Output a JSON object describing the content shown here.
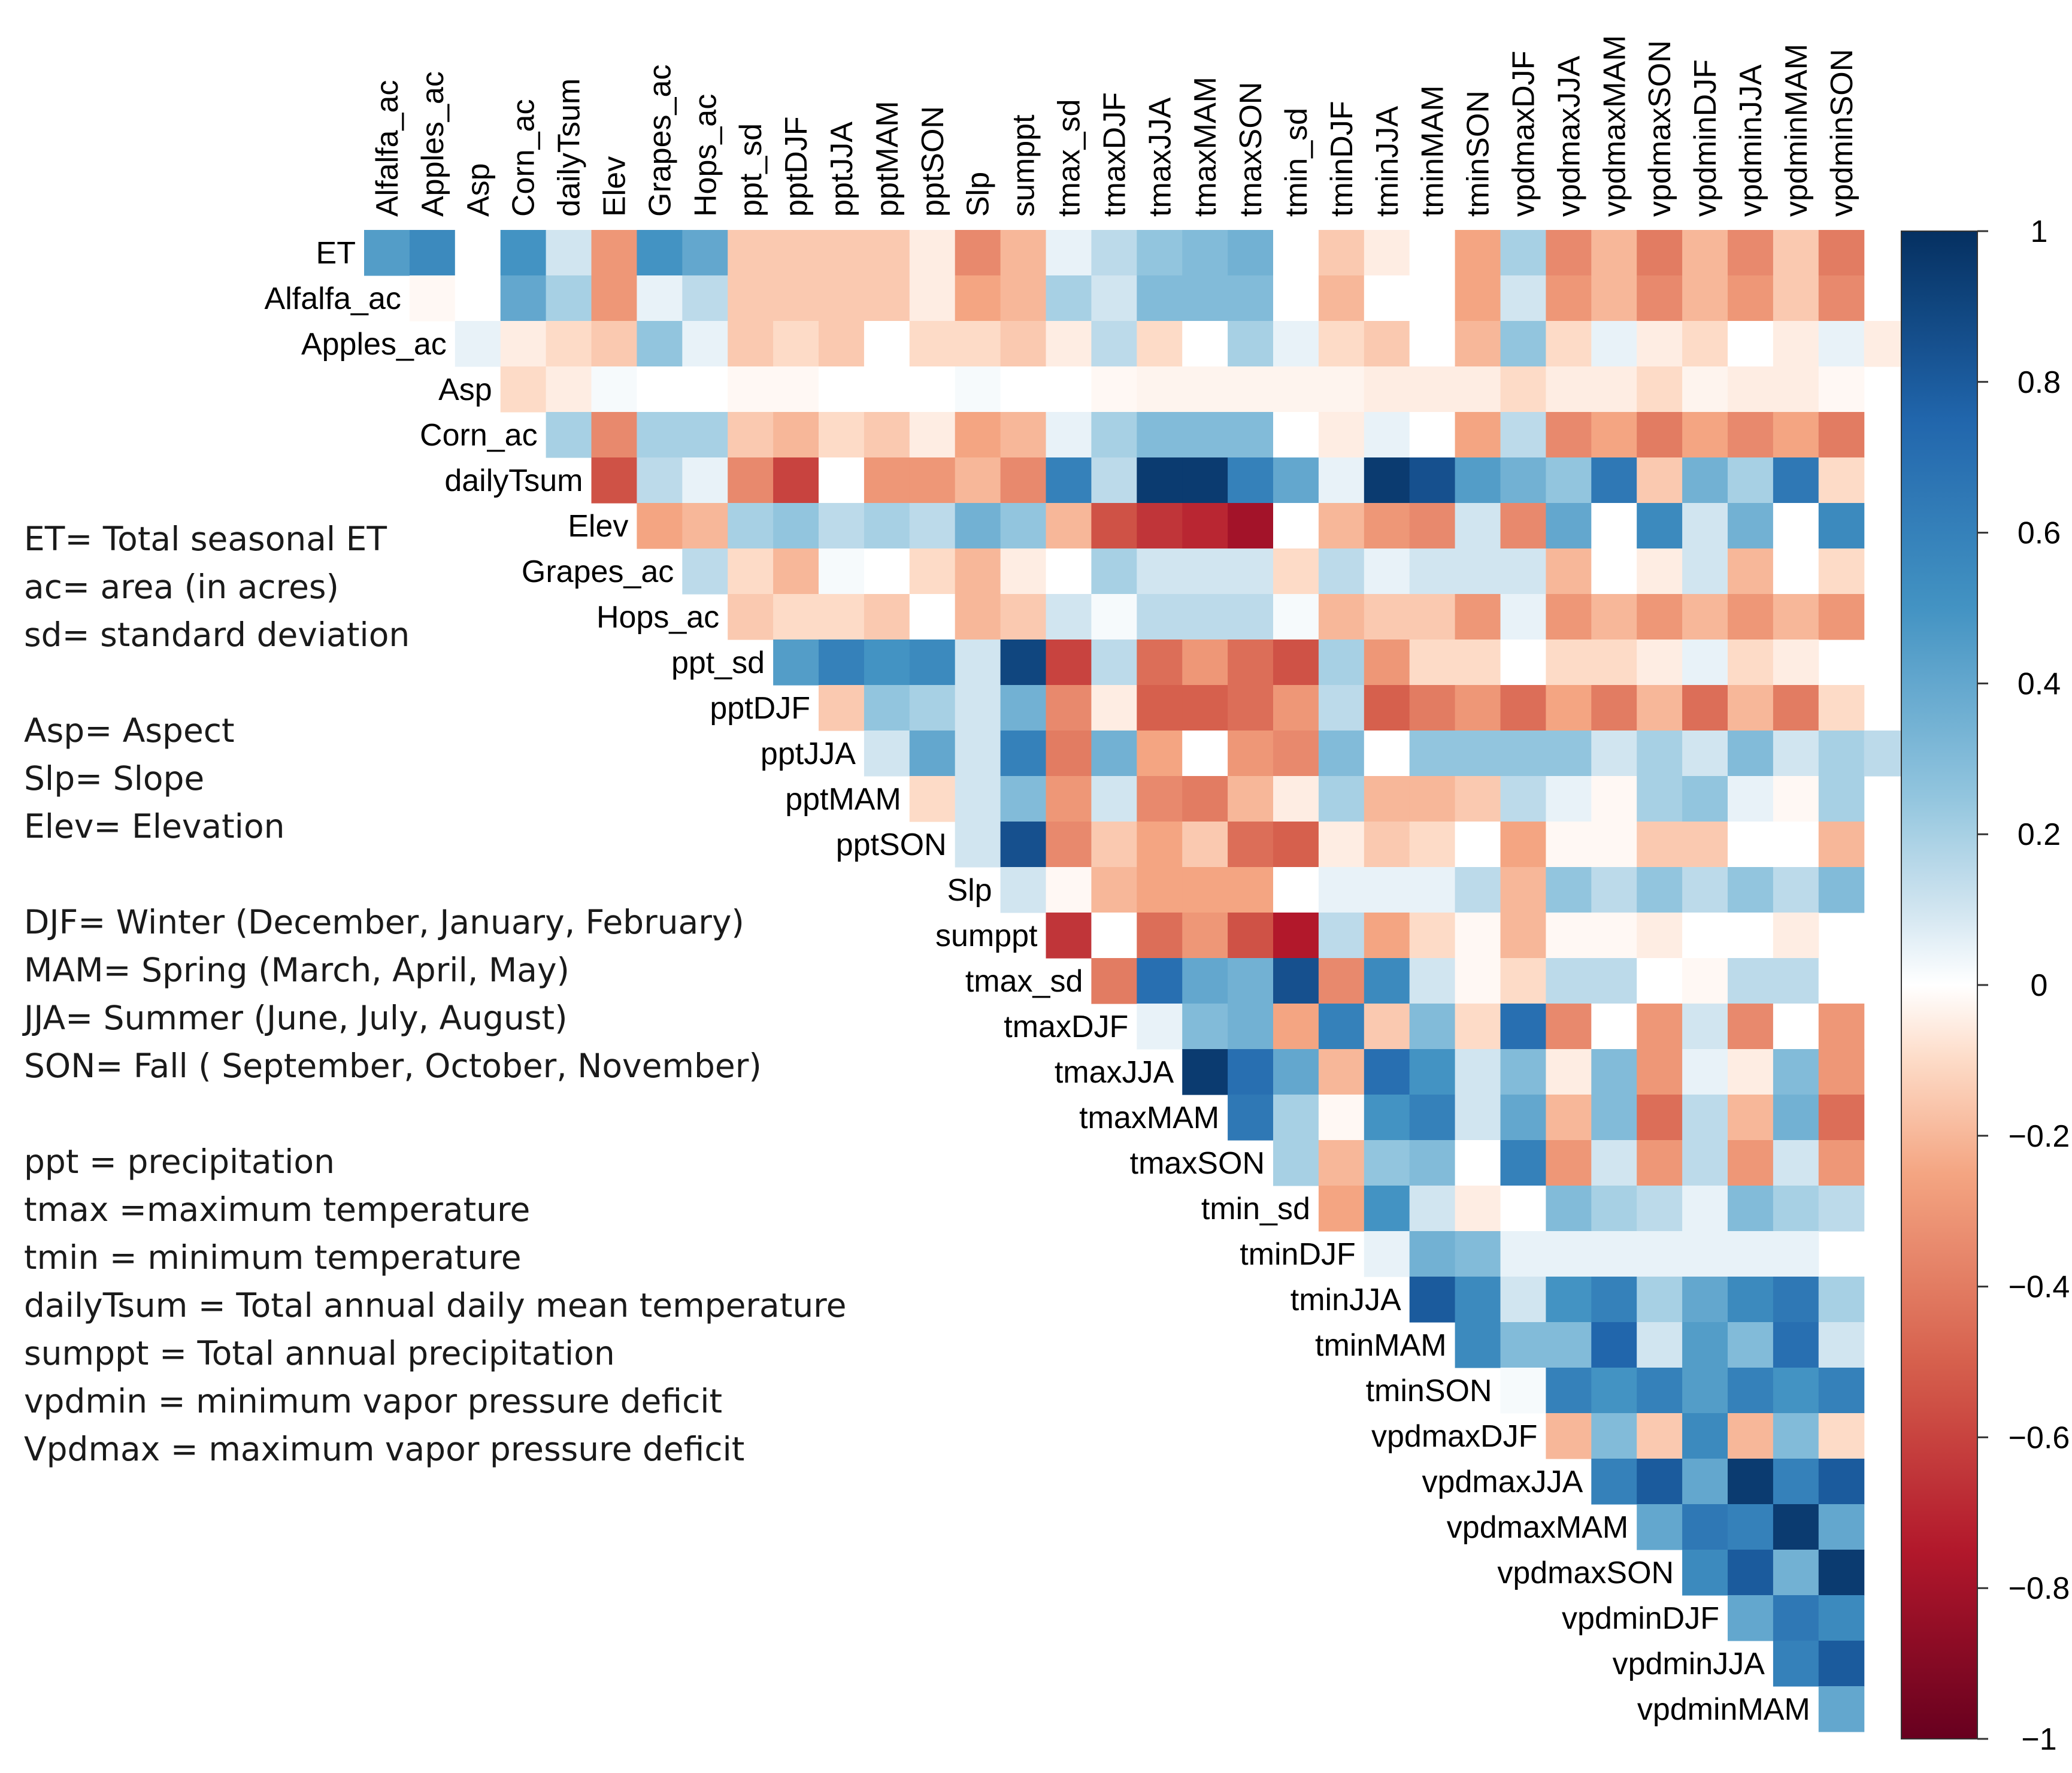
{
  "chart_data": {
    "type": "heatmap",
    "variant": "correlation-matrix-upper-triangle",
    "columns": [
      "Alfalfa_ac",
      "Apples_ac",
      "Asp",
      "Corn_ac",
      "dailyTsum",
      "Elev",
      "Grapes_ac",
      "Hops_ac",
      "ppt_sd",
      "pptDJF",
      "pptJJA",
      "pptMAM",
      "pptSON",
      "Slp",
      "sumppt",
      "tmax_sd",
      "tmaxDJF",
      "tmaxJJA",
      "tmaxMAM",
      "tmaxSON",
      "tmin_sd",
      "tminDJF",
      "tminJJA",
      "tminMAM",
      "tminSON",
      "vpdmaxDJF",
      "vpdmaxJJA",
      "vpdmaxMAM",
      "vpdmaxSON",
      "vpdminDJF",
      "vpdminJJA",
      "vpdminMAM",
      "vpdminSON"
    ],
    "rows": [
      "ET",
      "Alfalfa_ac",
      "Apples_ac",
      "Asp",
      "Corn_ac",
      "dailyTsum",
      "Elev",
      "Grapes_ac",
      "Hops_ac",
      "ppt_sd",
      "pptDJF",
      "pptJJA",
      "pptMAM",
      "pptSON",
      "Slp",
      "sumppt",
      "tmax_sd",
      "tmaxDJF",
      "tmaxJJA",
      "tmaxMAM",
      "tmaxSON",
      "tmin_sd",
      "tminDJF",
      "tminJJA",
      "tminMAM",
      "tminSON",
      "vpdmaxDJF",
      "vpdmaxJJA",
      "vpdmaxMAM",
      "vpdmaxSON",
      "vpdminDJF",
      "vpdminJJA",
      "vpdminMAM"
    ],
    "values": [
      [
        0.45,
        0.55,
        0.0,
        0.5,
        0.1,
        -0.3,
        0.5,
        0.4,
        -0.15,
        -0.15,
        -0.15,
        -0.15,
        -0.05,
        -0.35,
        -0.2,
        0.05,
        0.15,
        0.25,
        0.3,
        0.35,
        0.0,
        -0.15,
        -0.05,
        0.0,
        -0.25,
        0.2,
        -0.35,
        -0.2,
        -0.4,
        -0.2,
        -0.35,
        -0.15,
        -0.4
      ],
      [
        -0.02,
        0.0,
        0.4,
        0.2,
        -0.3,
        0.05,
        0.15,
        -0.15,
        -0.15,
        -0.15,
        -0.15,
        -0.05,
        -0.25,
        -0.2,
        0.2,
        0.1,
        0.3,
        0.3,
        0.3,
        0.0,
        -0.2,
        0.0,
        0.0,
        -0.25,
        0.1,
        -0.3,
        -0.2,
        -0.35,
        -0.2,
        -0.3,
        -0.15,
        -0.35
      ],
      [
        0.05,
        -0.05,
        -0.1,
        -0.15,
        0.25,
        0.05,
        -0.15,
        -0.1,
        -0.15,
        0.0,
        -0.1,
        -0.1,
        -0.15,
        -0.05,
        0.15,
        -0.1,
        0.0,
        0.2,
        0.05,
        -0.1,
        -0.15,
        0.0,
        -0.2,
        0.25,
        -0.1,
        0.05,
        -0.05,
        -0.1,
        0.0,
        -0.05,
        0.05,
        -0.05
      ],
      [
        -0.1,
        -0.05,
        0.02,
        0.0,
        0.0,
        -0.02,
        -0.02,
        0.0,
        0.0,
        0.0,
        0.02,
        0.0,
        0.0,
        -0.02,
        -0.03,
        -0.03,
        -0.03,
        -0.03,
        -0.03,
        -0.05,
        -0.05,
        -0.05,
        -0.1,
        -0.05,
        -0.05,
        -0.1,
        -0.03,
        -0.05,
        -0.05,
        -0.02
      ],
      [
        0.2,
        -0.35,
        0.2,
        0.2,
        -0.15,
        -0.2,
        -0.1,
        -0.15,
        -0.05,
        -0.25,
        -0.2,
        0.05,
        0.2,
        0.3,
        0.3,
        0.3,
        0.0,
        -0.05,
        0.05,
        0.0,
        -0.25,
        0.15,
        -0.35,
        -0.25,
        -0.4,
        -0.25,
        -0.35,
        -0.25,
        -0.4
      ],
      [
        -0.55,
        0.15,
        0.05,
        -0.35,
        -0.6,
        0.0,
        -0.3,
        -0.3,
        -0.2,
        -0.35,
        0.6,
        0.15,
        0.95,
        0.95,
        0.6,
        0.4,
        0.05,
        0.95,
        0.85,
        0.45,
        0.35,
        0.25,
        0.65,
        -0.15,
        0.35,
        0.2,
        0.65,
        -0.1
      ],
      [
        -0.25,
        -0.2,
        0.2,
        0.25,
        0.15,
        0.2,
        0.15,
        0.35,
        0.25,
        -0.2,
        -0.55,
        -0.65,
        -0.7,
        -0.8,
        0.0,
        -0.2,
        -0.3,
        -0.35,
        0.1,
        -0.35,
        0.4,
        0.0,
        0.55,
        0.1,
        0.35,
        0.0,
        0.55
      ],
      [
        0.15,
        -0.1,
        -0.2,
        0.02,
        0.0,
        -0.1,
        -0.2,
        -0.05,
        0.0,
        0.2,
        0.1,
        0.1,
        0.1,
        -0.1,
        0.15,
        0.05,
        0.1,
        0.1,
        0.1,
        -0.2,
        0.0,
        -0.05,
        0.1,
        -0.2,
        0.0,
        -0.1
      ],
      [
        -0.15,
        -0.1,
        -0.1,
        -0.15,
        0.0,
        -0.2,
        -0.15,
        0.1,
        0.02,
        0.15,
        0.15,
        0.15,
        0.02,
        -0.2,
        -0.15,
        -0.15,
        -0.3,
        0.05,
        -0.3,
        -0.2,
        -0.3,
        -0.2,
        -0.3,
        -0.2,
        -0.3
      ],
      [
        0.45,
        0.6,
        0.5,
        0.55,
        0.1,
        0.9,
        -0.6,
        0.15,
        -0.45,
        -0.3,
        -0.45,
        -0.55,
        0.2,
        -0.3,
        -0.1,
        -0.1,
        0.0,
        -0.1,
        -0.1,
        -0.05,
        0.05,
        -0.1,
        -0.05
      ],
      [
        -0.15,
        0.25,
        0.2,
        0.1,
        0.35,
        -0.35,
        -0.05,
        -0.5,
        -0.5,
        -0.45,
        -0.3,
        0.15,
        -0.5,
        -0.4,
        -0.3,
        -0.45,
        -0.25,
        -0.4,
        -0.2,
        -0.45,
        -0.2,
        -0.4,
        -0.1
      ],
      [
        0.1,
        0.4,
        0.1,
        0.6,
        -0.4,
        0.35,
        -0.25,
        0.0,
        -0.3,
        -0.35,
        0.3,
        0.0,
        0.25,
        0.25,
        0.25,
        0.25,
        0.1,
        0.2,
        0.1,
        0.3,
        0.1,
        0.2,
        0.15
      ],
      [
        -0.1,
        0.1,
        0.3,
        -0.3,
        0.1,
        -0.35,
        -0.4,
        -0.2,
        -0.05,
        0.2,
        -0.2,
        -0.2,
        -0.15,
        0.15,
        0.05,
        -0.02,
        0.2,
        0.25,
        0.05,
        -0.02,
        0.2
      ],
      [
        0.1,
        0.85,
        -0.35,
        -0.15,
        -0.25,
        -0.15,
        -0.45,
        -0.5,
        -0.05,
        -0.15,
        -0.1,
        0.0,
        -0.25,
        -0.02,
        -0.02,
        -0.15,
        -0.15,
        0.0,
        0.0,
        -0.2
      ],
      [
        0.1,
        -0.02,
        -0.2,
        -0.25,
        -0.25,
        -0.25,
        0.0,
        0.05,
        0.05,
        0.05,
        0.15,
        -0.2,
        0.25,
        0.15,
        0.25,
        0.15,
        0.25,
        0.15,
        0.3
      ],
      [
        -0.65,
        0.0,
        -0.45,
        -0.3,
        -0.55,
        -0.75,
        0.15,
        -0.25,
        -0.1,
        -0.02,
        -0.2,
        -0.02,
        -0.02,
        -0.05,
        0.0,
        0.0,
        -0.05
      ],
      [
        -0.4,
        0.7,
        0.4,
        0.35,
        0.85,
        -0.35,
        0.55,
        0.1,
        -0.02,
        -0.1,
        0.15,
        0.15,
        0.0,
        -0.02,
        0.15,
        0.15,
        0.0
      ],
      [
        0.05,
        0.3,
        0.35,
        -0.25,
        0.6,
        -0.15,
        0.3,
        -0.1,
        0.7,
        -0.35,
        0.0,
        -0.3,
        0.1,
        -0.35,
        0.0,
        -0.3
      ],
      [
        0.95,
        0.7,
        0.4,
        -0.2,
        0.7,
        0.5,
        0.1,
        0.3,
        -0.05,
        0.3,
        -0.3,
        0.05,
        -0.05,
        0.3,
        -0.3
      ],
      [
        0.65,
        0.2,
        -0.02,
        0.5,
        0.6,
        0.1,
        0.4,
        -0.2,
        0.3,
        -0.45,
        0.15,
        -0.2,
        0.35,
        -0.45
      ],
      [
        0.2,
        -0.2,
        0.25,
        0.3,
        0.0,
        0.6,
        -0.3,
        0.1,
        -0.3,
        0.15,
        -0.3,
        0.1,
        -0.3
      ],
      [
        -0.25,
        0.5,
        0.1,
        -0.05,
        0.0,
        0.3,
        0.2,
        0.15,
        0.05,
        0.3,
        0.2,
        0.15
      ],
      [
        0.05,
        0.35,
        0.3,
        0.05,
        0.05,
        0.05,
        0.05,
        0.05,
        0.05,
        0.05
      ],
      [
        0.8,
        0.55,
        0.1,
        0.5,
        0.6,
        0.2,
        0.4,
        0.55,
        0.65,
        0.2
      ],
      [
        0.55,
        0.3,
        0.3,
        0.75,
        0.1,
        0.45,
        0.3,
        0.7,
        0.1
      ],
      [
        0.02,
        0.6,
        0.5,
        0.6,
        0.45,
        0.6,
        0.5,
        0.6
      ],
      [
        -0.2,
        0.3,
        -0.15,
        0.55,
        -0.2,
        0.3,
        -0.1
      ],
      [
        0.6,
        0.8,
        0.4,
        0.95,
        0.6,
        0.8
      ],
      [
        0.4,
        0.65,
        0.6,
        0.95,
        0.4
      ],
      [
        0.55,
        0.8,
        0.35,
        0.95
      ],
      [
        0.4,
        0.65,
        0.55
      ],
      [
        0.6,
        0.8
      ],
      [
        0.4
      ]
    ],
    "colorbar": {
      "range": [
        -1,
        1
      ],
      "ticks": [
        1,
        0.8,
        0.6,
        0.4,
        0.2,
        0,
        -0.2,
        -0.4,
        -0.6,
        -0.8,
        -1
      ],
      "tick_labels": [
        "1",
        "0.8",
        "0.6",
        "0.4",
        "0.2",
        "0",
        "−0.2",
        "−0.4",
        "−0.6",
        "−0.8",
        "−1"
      ],
      "high_color": "#053061",
      "mid_color": "#ffffff",
      "low_color": "#67001f"
    },
    "title": "",
    "xlabel": "",
    "ylabel": ""
  },
  "legend_text": {
    "group1": [
      "ET= Total seasonal ET",
      "ac= area (in acres)",
      "sd= standard deviation"
    ],
    "group2": [
      "Asp= Aspect",
      "Slp= Slope",
      "Elev= Elevation"
    ],
    "group3": [
      "DJF= Winter (December, January, February)",
      "MAM= Spring (March, April, May)",
      "JJA= Summer (June, July, August)",
      "SON= Fall ( September, October, November)"
    ],
    "group4": [
      "ppt = precipitation",
      "tmax =maximum temperature",
      "tmin = minimum temperature",
      "dailyTsum = Total annual daily mean temperature",
      "sumppt = Total annual precipitation",
      "vpdmin = minimum vapor pressure deficit",
      "Vpdmax = maximum vapor pressure deficit"
    ]
  }
}
